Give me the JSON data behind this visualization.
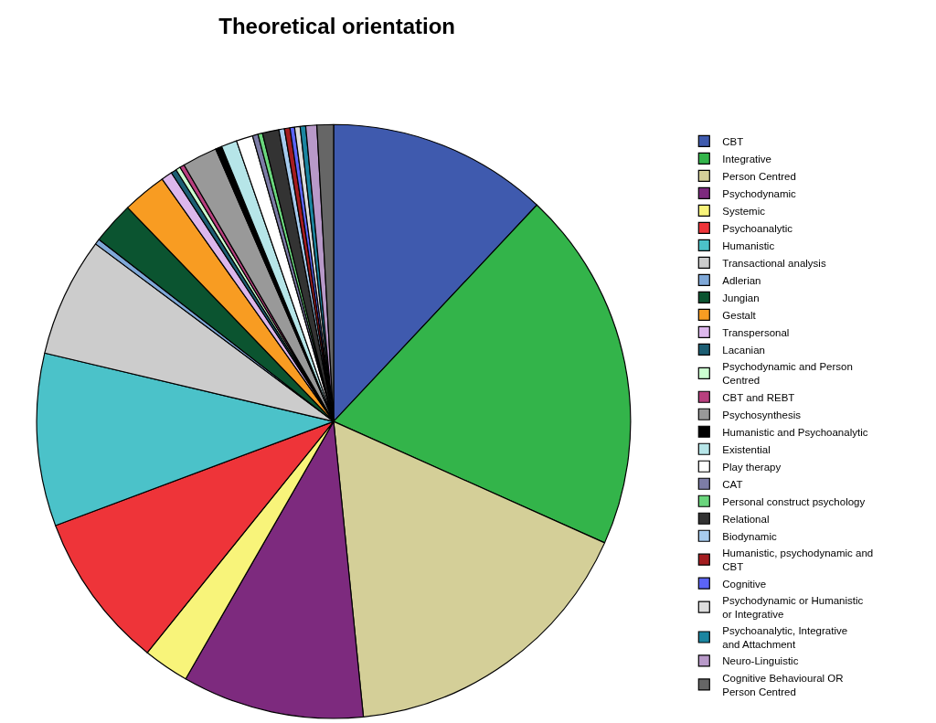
{
  "chart_data": {
    "type": "pie",
    "title": "Theoretical orientation",
    "legend": "right",
    "categories": [
      "CBT",
      "Integrative",
      "Person Centred",
      "Psychodynamic",
      "Systemic",
      "Psychoanalytic",
      "Humanistic",
      "Transactional analysis",
      "Adlerian",
      "Jungian",
      "Gestalt",
      "Transpersonal",
      "Lacanian",
      "Psychodynamic and Person Centred",
      "CBT and REBT",
      "Psychosynthesis",
      "Humanistic and Psychoanalytic",
      "Existential",
      "Play therapy",
      "CAT",
      "Personal construct psychology",
      "Relational",
      "Biodynamic",
      "Humanistic, psychodynamic and CBT",
      "Cognitive",
      "Psychodynamic or Humanistic or Integrative",
      "Psychoanalytic, Integrative and Attachment",
      "Neuro-Linguistic",
      "Cognitive Behavioural OR Person Centred"
    ],
    "values": [
      12,
      19.7,
      16.7,
      9.9,
      2.5,
      8.5,
      9.4,
      6.5,
      0.3,
      2.3,
      2.4,
      0.6,
      0.3,
      0.25,
      0.25,
      1.9,
      0.35,
      0.85,
      0.9,
      0.3,
      0.25,
      0.9,
      0.3,
      0.3,
      0.25,
      0.3,
      0.3,
      0.6,
      0.9
    ],
    "colors": [
      "#3f5aae",
      "#33b44a",
      "#d4cf98",
      "#7d2a7e",
      "#f8f47a",
      "#ee3439",
      "#4bc2c9",
      "#cccccc",
      "#7fa8d8",
      "#0b5430",
      "#f89c22",
      "#dcb7ec",
      "#1c5e73",
      "#ccffd0",
      "#b83f7e",
      "#999999",
      "#000000",
      "#b6e5e8",
      "#ffffff",
      "#7c7ca6",
      "#6ad67d",
      "#333333",
      "#a6cbee",
      "#a41d20",
      "#5b64f7",
      "#dddddd",
      "#1b85a0",
      "#b899c9",
      "#666666"
    ]
  }
}
